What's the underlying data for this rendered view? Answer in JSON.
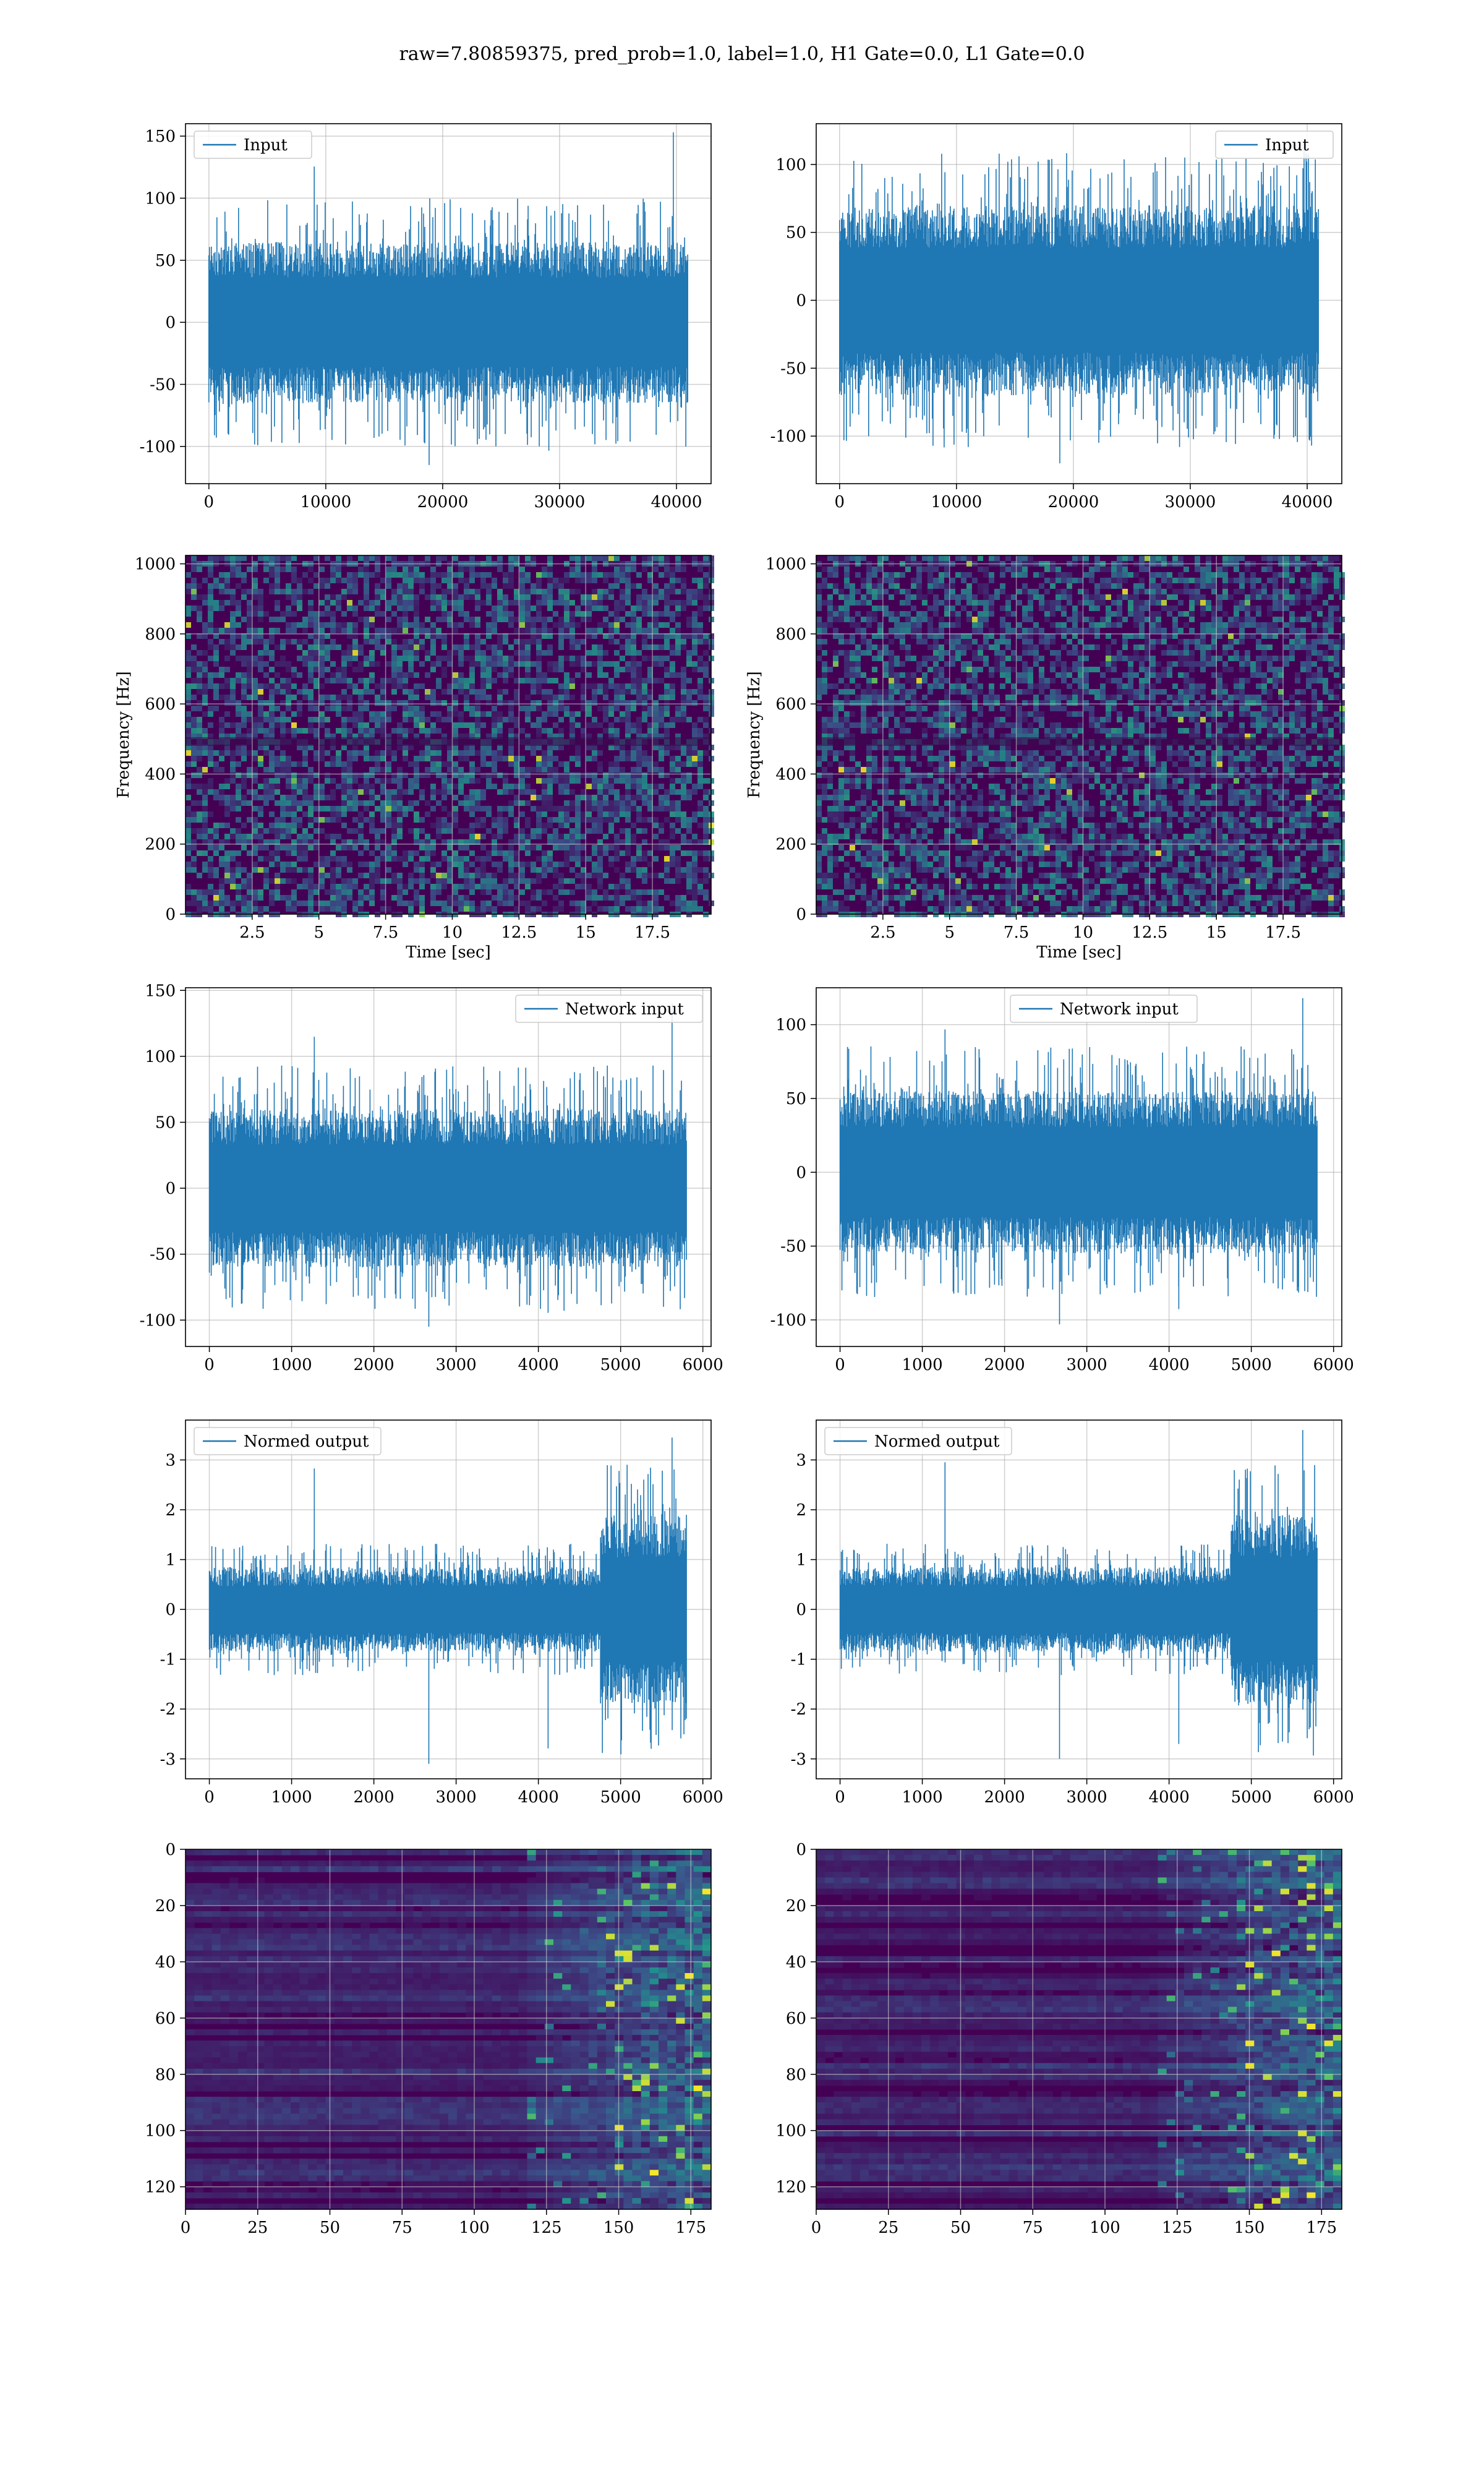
{
  "figure": {
    "title": "raw=7.80859375, pred_prob=1.0, label=1.0, H1 Gate=0.0, L1 Gate=0.0"
  },
  "colors": {
    "line": "#1f77b4",
    "grid": "#b0b0b0",
    "heat_low": "#440154",
    "heat_mid": "#21908d",
    "heat_high": "#fde725"
  },
  "chart_data": [
    {
      "id": "input-h1",
      "type": "line",
      "legend": "Input",
      "legend_loc": "upper left",
      "xlim": [
        -2000,
        42960
      ],
      "ylim": [
        -130,
        160
      ],
      "xticks": [
        0,
        10000,
        20000,
        30000,
        40000
      ],
      "yticks": [
        -100,
        -50,
        0,
        50,
        100,
        150
      ],
      "series": [
        {
          "name": "Input",
          "n": 40960,
          "core": 65,
          "peak_max": 153,
          "peak_min": -115
        }
      ]
    },
    {
      "id": "input-l1",
      "type": "line",
      "legend": "Input",
      "legend_loc": "upper right",
      "xlim": [
        -2000,
        42960
      ],
      "ylim": [
        -135,
        130
      ],
      "xticks": [
        0,
        10000,
        20000,
        30000,
        40000
      ],
      "yticks": [
        -100,
        -50,
        0,
        50,
        100
      ],
      "series": [
        {
          "name": "Input",
          "n": 40960,
          "core": 70,
          "peak_max": 115,
          "peak_min": -120
        }
      ]
    },
    {
      "id": "spec-h1",
      "type": "heatmap",
      "xlabel": "Time [sec]",
      "ylabel": "Frequency [Hz]",
      "xlim": [
        0,
        19.7
      ],
      "ylim": [
        0,
        1024
      ],
      "xticks": [
        2.5,
        5.0,
        7.5,
        10.0,
        12.5,
        15.0,
        17.5
      ],
      "yticks": [
        0,
        200,
        400,
        600,
        800,
        1000
      ]
    },
    {
      "id": "spec-l1",
      "type": "heatmap",
      "xlabel": "Time [sec]",
      "ylabel": "Frequency [Hz]",
      "xlim": [
        0,
        19.7
      ],
      "ylim": [
        0,
        1024
      ],
      "xticks": [
        2.5,
        5.0,
        7.5,
        10.0,
        12.5,
        15.0,
        17.5
      ],
      "yticks": [
        0,
        200,
        400,
        600,
        800,
        1000
      ]
    },
    {
      "id": "netin-h1",
      "type": "line",
      "legend": "Network input",
      "legend_loc": "upper right",
      "xlim": [
        -290,
        6100
      ],
      "ylim": [
        -120,
        152
      ],
      "xticks": [
        0,
        1000,
        2000,
        3000,
        4000,
        5000,
        6000
      ],
      "yticks": [
        -100,
        -50,
        0,
        50,
        100,
        150
      ],
      "series": [
        {
          "name": "Network input",
          "n": 5800,
          "core": 60,
          "peak_max": 140,
          "peak_min": -105
        }
      ]
    },
    {
      "id": "netin-l1",
      "type": "line",
      "legend": "Network input",
      "legend_loc": "upper center",
      "xlim": [
        -290,
        6100
      ],
      "ylim": [
        -118,
        125
      ],
      "xticks": [
        0,
        1000,
        2000,
        3000,
        4000,
        5000,
        6000
      ],
      "yticks": [
        -100,
        -50,
        0,
        50,
        100
      ],
      "series": [
        {
          "name": "Network input",
          "n": 5800,
          "core": 55,
          "peak_max": 118,
          "peak_min": -103
        }
      ]
    },
    {
      "id": "normout-h1",
      "type": "line",
      "legend": "Normed output",
      "legend_loc": "upper left",
      "xlim": [
        -290,
        6100
      ],
      "ylim": [
        -3.4,
        3.8
      ],
      "xticks": [
        0,
        1000,
        2000,
        3000,
        4000,
        5000,
        6000
      ],
      "yticks": [
        -3,
        -2,
        -1,
        0,
        1,
        2,
        3
      ],
      "series": [
        {
          "name": "Normed output",
          "n": 5800,
          "core": 0.85,
          "burst_start": 4750,
          "burst_core": 1.9,
          "peak_max": 3.45,
          "peak_min": -3.1
        }
      ]
    },
    {
      "id": "normout-l1",
      "type": "line",
      "legend": "Normed output",
      "legend_loc": "upper left",
      "xlim": [
        -290,
        6100
      ],
      "ylim": [
        -3.4,
        3.8
      ],
      "xticks": [
        0,
        1000,
        2000,
        3000,
        4000,
        5000,
        6000
      ],
      "yticks": [
        -3,
        -2,
        -1,
        0,
        1,
        2,
        3
      ],
      "series": [
        {
          "name": "Normed output",
          "n": 5800,
          "core": 0.85,
          "burst_start": 4750,
          "burst_core": 1.9,
          "peak_max": 3.6,
          "peak_min": -3.0
        }
      ]
    },
    {
      "id": "feat-h1",
      "type": "heatmap",
      "xlim": [
        0,
        182
      ],
      "ylim": [
        128,
        0
      ],
      "xticks": [
        0,
        25,
        50,
        75,
        100,
        125,
        150,
        175
      ],
      "yticks": [
        0,
        20,
        40,
        60,
        80,
        100,
        120
      ]
    },
    {
      "id": "feat-l1",
      "type": "heatmap",
      "xlim": [
        0,
        182
      ],
      "ylim": [
        128,
        0
      ],
      "xticks": [
        0,
        25,
        50,
        75,
        100,
        125,
        150,
        175
      ],
      "yticks": [
        0,
        20,
        40,
        60,
        80,
        100,
        120
      ]
    }
  ]
}
